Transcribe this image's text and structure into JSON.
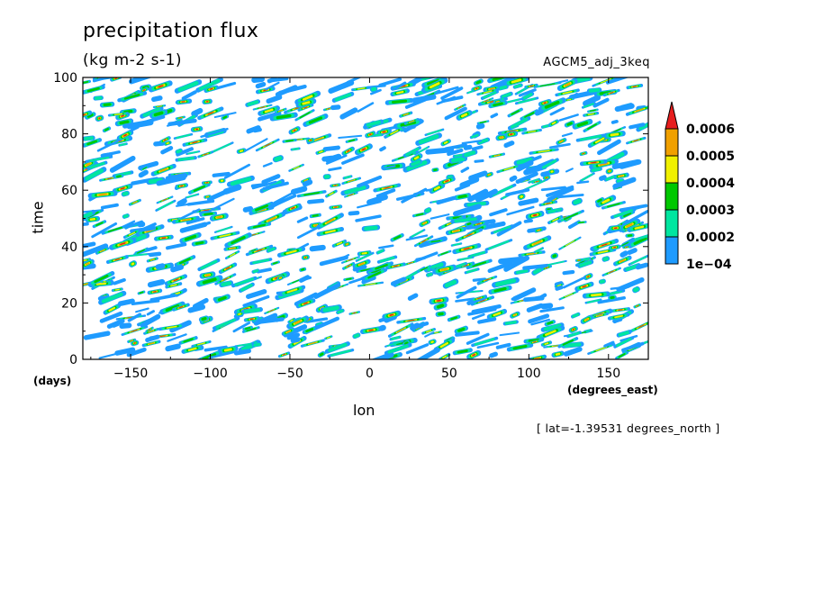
{
  "chart_data": {
    "type": "heatmap",
    "title": "precipitation flux",
    "subtitle": "(kg m-2 s-1)",
    "run_label": "AGCM5_adj_3keq",
    "xlabel": "lon",
    "x_units": "(degrees_east)",
    "ylabel": "time",
    "y_units": "(days)",
    "xlim": [
      -180,
      175
    ],
    "ylim": [
      0,
      100
    ],
    "x_ticks": [
      "-150",
      "-100",
      "-50",
      "0",
      "50",
      "100",
      "150"
    ],
    "x_tick_values": [
      -150,
      -100,
      -50,
      0,
      50,
      100,
      150
    ],
    "y_ticks": [
      "0",
      "20",
      "40",
      "60",
      "80",
      "100"
    ],
    "y_tick_values": [
      0,
      20,
      40,
      60,
      80,
      100
    ],
    "footer": "[ lat=-1.39531 degrees_north ]",
    "colorbar": {
      "labels": [
        "1e-04",
        "0.0002",
        "0.0003",
        "0.0004",
        "0.0005",
        "0.0006"
      ],
      "levels": [
        0.0001,
        0.0002,
        0.0003,
        0.0004,
        0.0005,
        0.0006
      ],
      "colors": [
        "#1e9bff",
        "#00e6a0",
        "#00c800",
        "#f0f000",
        "#f0a000",
        "#e61e1e"
      ],
      "extend": "max"
    }
  }
}
